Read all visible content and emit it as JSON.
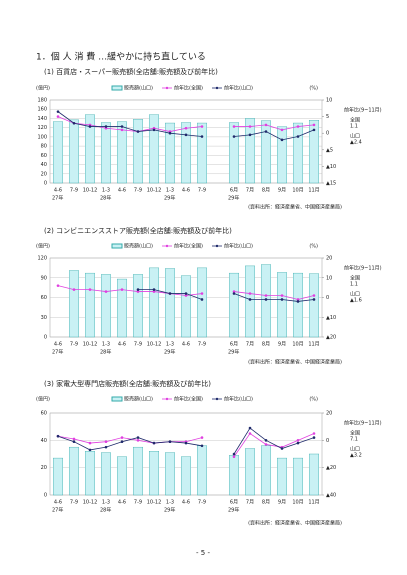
{
  "header": {
    "title": "1．個 人 消 費 …緩やかに持ち直している"
  },
  "chart_data": [
    {
      "type": "bar",
      "title": "(1) 百貨店・スーパー販売額(全店舗:販売額及び前年比)",
      "unit_left": "(億円)",
      "unit_right": "(%)",
      "categories": [
        "4-6",
        "7-9",
        "10-12",
        "1-3",
        "4-6",
        "7-9",
        "10-12",
        "1-3",
        "4-6",
        "7-9",
        null,
        "6月",
        "7月",
        "8月",
        "9月",
        "10月",
        "11月"
      ],
      "year_labels": [
        "27年",
        "28年",
        "29年",
        "29年"
      ],
      "series": [
        {
          "name": "販売額(山口)",
          "type": "bar",
          "color": "#c9f1f4",
          "values": [
            133,
            137,
            148,
            131,
            133,
            138,
            148,
            130,
            131,
            130,
            null,
            131,
            140,
            135,
            122,
            130,
            136
          ]
        },
        {
          "name": "前年比(全国)",
          "type": "line",
          "axis": "y2",
          "color": "#e040e0",
          "values": [
            5,
            3,
            2.5,
            1.5,
            1,
            0.5,
            1.5,
            0.5,
            1.5,
            2,
            null,
            2,
            2,
            2.5,
            1,
            2,
            2.5
          ]
        },
        {
          "name": "前年比(山口)",
          "type": "line",
          "axis": "y2",
          "color": "#1f2a6b",
          "values": [
            6.5,
            3,
            2,
            2,
            2,
            0.5,
            1,
            0,
            -0.5,
            -1,
            null,
            -1,
            -0.5,
            0.5,
            -2,
            -1,
            1
          ]
        }
      ],
      "ylim": [
        0,
        180
      ],
      "yticks": [
        0,
        20,
        40,
        60,
        80,
        100,
        120,
        140,
        160,
        180
      ],
      "y2lim": [
        -15,
        10
      ],
      "y2ticks": [
        10,
        5,
        0,
        {
          "value": -5,
          "label": "▲5"
        },
        {
          "value": -10,
          "label": "▲10"
        },
        {
          "value": -15,
          "label": "▲15"
        }
      ],
      "grid": true,
      "side_note": {
        "title": "前年比(9~11月)",
        "items": [
          {
            "name": "全国",
            "value": "1.1"
          },
          {
            "name": "山口",
            "value": "▲2.4"
          }
        ]
      },
      "source": "(資料出所：経済産業省、中国経済産業局)"
    },
    {
      "type": "bar",
      "title": "(2) コンビニエンスストア販売額(全店舗:販売額及び前年比)",
      "unit_left": "(億円)",
      "unit_right": "(%)",
      "categories": [
        "4-6",
        "7-9",
        "10-12",
        "1-3",
        "4-6",
        "7-9",
        "10-12",
        "1-3",
        "4-6",
        "7-9",
        null,
        "6月",
        "7月",
        "8月",
        "9月",
        "10月",
        "11月"
      ],
      "year_labels": [
        "27年",
        "28年",
        "29年",
        "29年"
      ],
      "series": [
        {
          "name": "販売額(山口)",
          "type": "bar",
          "color": "#c9f1f4",
          "values": [
            null,
            101,
            97,
            95,
            88,
            95,
            105,
            104,
            93,
            105,
            null,
            97,
            108,
            110,
            98,
            97,
            96
          ]
        },
        {
          "name": "前年比(全国)",
          "type": "line",
          "axis": "y2",
          "color": "#e040e0",
          "values": [
            6,
            4,
            4,
            3,
            4,
            3,
            3,
            2,
            1,
            2,
            null,
            3,
            2,
            1,
            1,
            -1,
            1
          ]
        },
        {
          "name": "前年比(山口)",
          "type": "line",
          "axis": "y2",
          "color": "#1f2a6b",
          "values": [
            null,
            null,
            null,
            null,
            null,
            4,
            4,
            2,
            2,
            -1,
            null,
            2,
            -1,
            -1,
            -1,
            -2,
            -1
          ]
        }
      ],
      "ylim": [
        0,
        120
      ],
      "yticks": [
        0,
        30,
        60,
        90,
        120
      ],
      "y2lim": [
        -20,
        20
      ],
      "y2ticks": [
        20,
        10,
        0,
        {
          "value": -10,
          "label": "▲10"
        },
        {
          "value": -20,
          "label": "▲20"
        }
      ],
      "grid": true,
      "side_note": {
        "title": "前年比(9~11月)",
        "items": [
          {
            "name": "全国",
            "value": "1.1"
          },
          {
            "name": "山口",
            "value": "▲1.6"
          }
        ]
      },
      "source": "(資料出所：経済産業省、中国経済産業局)"
    },
    {
      "type": "bar",
      "title": "(3) 家電大型専門店販売額(全店舗:販売額及び前年比)",
      "unit_left": "(億円)",
      "unit_right": "(%)",
      "categories": [
        "4-6",
        "7-9",
        "10-12",
        "1-3",
        "4-6",
        "7-9",
        "10-12",
        "1-3",
        "4-6",
        "7-9",
        null,
        "6月",
        "7月",
        "8月",
        "9月",
        "10月",
        "11月"
      ],
      "year_labels": [
        "27年",
        "28年",
        "29年",
        "29年"
      ],
      "series": [
        {
          "name": "販売額(山口)",
          "type": "bar",
          "color": "#c9f1f4",
          "values": [
            27,
            35,
            32,
            31,
            28,
            35,
            32,
            31,
            28,
            36,
            null,
            29,
            34,
            36,
            27,
            27,
            30
          ]
        },
        {
          "name": "前年比(全国)",
          "type": "line",
          "axis": "y2",
          "color": "#e040e0",
          "values": [
            3,
            1,
            -2,
            -1,
            2,
            0,
            -2,
            -1,
            -1,
            2,
            null,
            -12,
            5,
            -3,
            -5,
            0,
            5
          ]
        },
        {
          "name": "前年比(山口)",
          "type": "line",
          "axis": "y2",
          "color": "#1f2a6b",
          "values": [
            3,
            -1,
            -7,
            -5,
            -1,
            2,
            -2,
            -1,
            -2,
            -4,
            null,
            -10,
            9,
            0,
            -6,
            -2,
            2
          ]
        }
      ],
      "ylim": [
        0,
        60
      ],
      "yticks": [
        0,
        20,
        40,
        60
      ],
      "y2lim": [
        -40,
        20
      ],
      "y2ticks": [
        20,
        0,
        {
          "value": -20,
          "label": "▲20"
        },
        {
          "value": -40,
          "label": "▲40"
        }
      ],
      "grid": true,
      "side_note": {
        "title": "前年比(9~11月)",
        "items": [
          {
            "name": "全国",
            "value": "7.1"
          },
          {
            "name": "山口",
            "value": "▲3.2"
          }
        ]
      },
      "source": "(資料出所：経済産業省、中国経済産業局)"
    }
  ],
  "page_number": "- 5 -"
}
